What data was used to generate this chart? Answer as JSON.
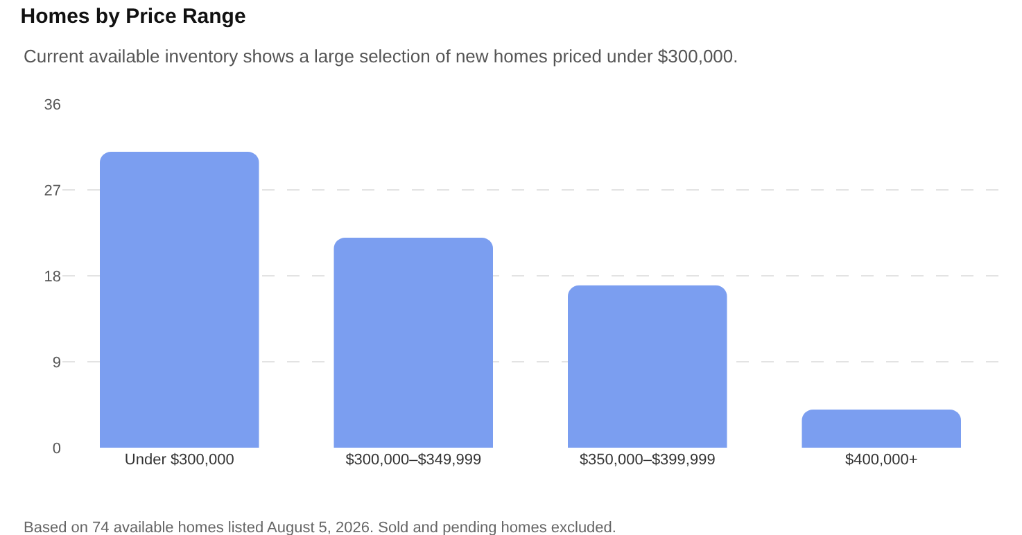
{
  "chart_data": {
    "type": "bar",
    "title": "Homes by Price Range",
    "subtitle": "Current available inventory shows a large selection of new homes priced under $300,000.",
    "categories": [
      "Under $300,000",
      "$300,000–$349,999",
      "$350,000–$399,999",
      "$400,000+"
    ],
    "values": [
      31,
      22,
      17,
      4
    ],
    "color": "#7b9ef0",
    "ylim": [
      0,
      36
    ],
    "yticks": [
      0,
      9,
      18,
      27,
      36
    ],
    "grid": "y",
    "annotations": [
      "Based on 74 available homes listed August 5, 2026. Sold and pending homes excluded."
    ]
  }
}
